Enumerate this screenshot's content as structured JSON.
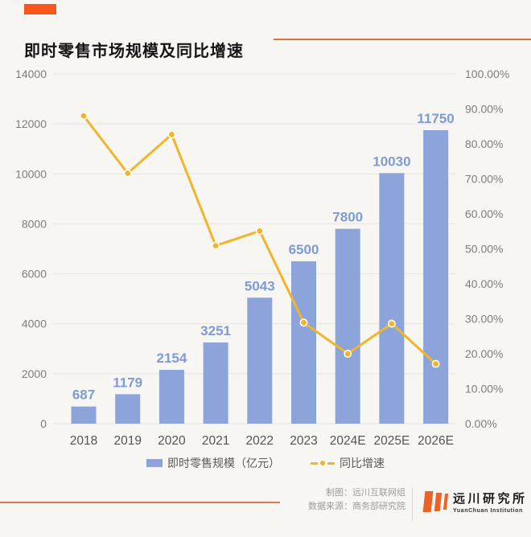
{
  "header": {
    "title": "即时零售市场规模及同比增速"
  },
  "colors": {
    "accent_orange": "#f7571c",
    "rule_orange": "#e0713c",
    "footer_rule_orange": "#d97b4c",
    "logo_orange": "#ed6226",
    "bar_blue": "#8ca4da",
    "bar_label_blue": "#7e9bd4",
    "line_yellow": "#f1b52c",
    "grid_gray": "#e7e4e1",
    "axis_text_gray": "#7d7d7d",
    "xaxis_text_gray": "#545454"
  },
  "chart_data": {
    "type": "bar",
    "title": "即时零售市场规模及同比增速",
    "categories": [
      "2018",
      "2019",
      "2020",
      "2021",
      "2022",
      "2023",
      "2024E",
      "2025E",
      "2026E"
    ],
    "series": [
      {
        "name": "即时零售规模（亿元）",
        "type": "bar",
        "axis": "left",
        "color": "#8ca4da",
        "label_color": "#7e9bd4",
        "values": [
          687,
          1179,
          2154,
          3251,
          5043,
          6500,
          7800,
          10030,
          11750
        ],
        "labels": [
          "687",
          "1179",
          "2154",
          "3251",
          "5043",
          "6500",
          "7800",
          "10030",
          "11750"
        ]
      },
      {
        "name": "同比增速",
        "type": "line",
        "axis": "right",
        "color": "#f1b52c",
        "values": [
          88.0,
          71.6,
          82.7,
          50.9,
          55.1,
          28.9,
          20.0,
          28.6,
          17.1
        ]
      }
    ],
    "left_axis": {
      "min": 0,
      "max": 14000,
      "step": 2000,
      "ticks": [
        "14000",
        "12000",
        "10000",
        "8000",
        "6000",
        "4000",
        "2000",
        "0"
      ]
    },
    "right_axis": {
      "min": 0,
      "max": 100,
      "step": 10,
      "ticks": [
        "100.00%",
        "90.00%",
        "80.00%",
        "70.00%",
        "60.00%",
        "50.00%",
        "40.00%",
        "30.00%",
        "20.00%",
        "10.00%",
        "0.00%"
      ]
    },
    "grid": true,
    "legend_position": "bottom"
  },
  "legend": {
    "bar_label": "即时零售规模（亿元）",
    "line_label": "同比增速"
  },
  "footer": {
    "credits": [
      "制图：远川互联网组",
      "数据来源：商务部研究院"
    ],
    "logo": {
      "name_cn": "远川研究所",
      "name_en": "YuanChuan Institution"
    }
  }
}
